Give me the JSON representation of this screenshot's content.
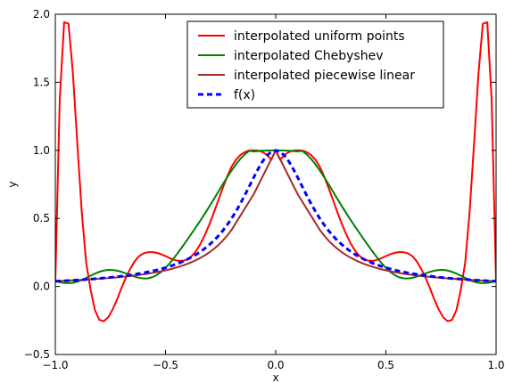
{
  "chart_data": {
    "type": "line",
    "title": "",
    "xlabel": "x",
    "ylabel": "y",
    "xlim": [
      -1.0,
      1.0
    ],
    "ylim": [
      -0.5,
      2.0
    ],
    "xticks": [
      -1.0,
      -0.5,
      0.0,
      0.5,
      1.0
    ],
    "xtick_labels": [
      "−1.0",
      "−0.5",
      "0.0",
      "0.5",
      "1.0"
    ],
    "yticks": [
      -0.5,
      0.0,
      0.5,
      1.0,
      1.5,
      2.0
    ],
    "ytick_labels": [
      "−0.5",
      "0.0",
      "0.5",
      "1.0",
      "1.5",
      "2.0"
    ],
    "grid": false,
    "legend_position": "top-right",
    "x": [
      -1.0,
      -0.98,
      -0.96,
      -0.94,
      -0.92,
      -0.9,
      -0.88,
      -0.86,
      -0.84,
      -0.82,
      -0.8,
      -0.78,
      -0.76,
      -0.74,
      -0.72,
      -0.7,
      -0.68,
      -0.66,
      -0.64,
      -0.62,
      -0.6,
      -0.58,
      -0.56,
      -0.54,
      -0.52,
      -0.5,
      -0.48,
      -0.46,
      -0.44,
      -0.42,
      -0.4,
      -0.38,
      -0.36,
      -0.34,
      -0.32,
      -0.3,
      -0.28,
      -0.26,
      -0.24,
      -0.22,
      -0.2,
      -0.18,
      -0.16,
      -0.14,
      -0.12,
      -0.1,
      -0.08,
      -0.06,
      -0.04,
      -0.02,
      0.0,
      0.02,
      0.04,
      0.06,
      0.08,
      0.1,
      0.12,
      0.14,
      0.16,
      0.18,
      0.2,
      0.22,
      0.24,
      0.26,
      0.28,
      0.3,
      0.32,
      0.34,
      0.36,
      0.38,
      0.4,
      0.42,
      0.44,
      0.46,
      0.48,
      0.5,
      0.52,
      0.54,
      0.56,
      0.58,
      0.6,
      0.62,
      0.64,
      0.66,
      0.68,
      0.7,
      0.72,
      0.74,
      0.76,
      0.78,
      0.8,
      0.82,
      0.84,
      0.86,
      0.88,
      0.9,
      0.92,
      0.94,
      0.96,
      0.98,
      1.0
    ],
    "series": [
      {
        "name": "interpolated uniform points",
        "color": "#ff0000",
        "style": "solid",
        "values": [
          0.0385,
          1.3694,
          1.9413,
          1.9299,
          1.5617,
          1.0465,
          0.5492,
          0.1762,
          -0.0233,
          -0.1745,
          -0.2458,
          -0.2553,
          -0.2264,
          -0.1699,
          -0.0971,
          -0.0122,
          0.0636,
          0.1295,
          0.1843,
          0.2229,
          0.2434,
          0.2515,
          0.2529,
          0.2469,
          0.2368,
          0.2231,
          0.2078,
          0.195,
          0.1876,
          0.1884,
          0.1999,
          0.2246,
          0.2635,
          0.3168,
          0.3829,
          0.4598,
          0.5455,
          0.6351,
          0.7241,
          0.8075,
          0.881,
          0.9312,
          0.9665,
          0.9879,
          0.9986,
          1.0,
          0.9986,
          0.9879,
          0.9665,
          0.9312,
          1.0,
          0.9312,
          0.9665,
          0.9879,
          0.9986,
          1.0,
          0.9986,
          0.9879,
          0.9665,
          0.9312,
          0.881,
          0.8075,
          0.7241,
          0.6351,
          0.5455,
          0.4598,
          0.3829,
          0.3168,
          0.2635,
          0.2246,
          0.1999,
          0.1884,
          0.1876,
          0.195,
          0.2078,
          0.2231,
          0.2368,
          0.2469,
          0.2529,
          0.2515,
          0.2434,
          0.2229,
          0.1843,
          0.1295,
          0.0636,
          -0.0122,
          -0.0971,
          -0.1699,
          -0.2264,
          -0.2553,
          -0.2458,
          -0.1745,
          -0.0233,
          0.1762,
          0.5492,
          1.0465,
          1.5617,
          1.9299,
          1.9413,
          1.3694,
          0.0385
        ]
      },
      {
        "name": "interpolated Chebyshev",
        "color": "#008000",
        "style": "solid",
        "values": [
          0.0385,
          0.0318,
          0.0262,
          0.024,
          0.0268,
          0.0348,
          0.0471,
          0.0624,
          0.0789,
          0.0946,
          0.1077,
          0.1169,
          0.1214,
          0.121,
          0.1161,
          0.1074,
          0.0961,
          0.0838,
          0.0722,
          0.0632,
          0.0585,
          0.0596,
          0.0677,
          0.0833,
          0.1064,
          0.1364,
          0.1721,
          0.2122,
          0.2553,
          0.3002,
          0.3461,
          0.3927,
          0.4401,
          0.4886,
          0.5386,
          0.5901,
          0.643,
          0.6967,
          0.7503,
          0.8026,
          0.8523,
          0.8979,
          0.938,
          0.9712,
          0.9962,
          0.9919,
          0.9948,
          0.9972,
          0.9988,
          0.9997,
          1.0,
          0.9997,
          0.9988,
          0.9972,
          0.9948,
          0.9919,
          0.9962,
          0.9712,
          0.938,
          0.8979,
          0.8523,
          0.8026,
          0.7503,
          0.6967,
          0.643,
          0.5901,
          0.5386,
          0.4886,
          0.4401,
          0.3927,
          0.3461,
          0.3002,
          0.2553,
          0.2122,
          0.1721,
          0.1364,
          0.1064,
          0.0833,
          0.0677,
          0.0596,
          0.0585,
          0.0632,
          0.0722,
          0.0838,
          0.0961,
          0.1074,
          0.1161,
          0.121,
          0.1214,
          0.1169,
          0.1077,
          0.0946,
          0.0789,
          0.0624,
          0.0471,
          0.0348,
          0.0268,
          0.024,
          0.0262,
          0.0318,
          0.0385
        ]
      },
      {
        "name": "interpolated piecewise linear",
        "color": "#a52a2a",
        "style": "solid",
        "values": [
          0.0385,
          0.0401,
          0.0417,
          0.0434,
          0.0451,
          0.0468,
          0.0487,
          0.0506,
          0.0526,
          0.0547,
          0.0569,
          0.0592,
          0.0616,
          0.0642,
          0.067,
          0.07,
          0.0733,
          0.0768,
          0.0806,
          0.0847,
          0.0892,
          0.0941,
          0.0993,
          0.105,
          0.1114,
          0.1183,
          0.126,
          0.1345,
          0.144,
          0.1546,
          0.1663,
          0.1796,
          0.1944,
          0.2113,
          0.2302,
          0.2518,
          0.2764,
          0.3044,
          0.3367,
          0.3736,
          0.416,
          0.4682,
          0.5204,
          0.5726,
          0.6248,
          0.677,
          0.7416,
          0.8062,
          0.8708,
          0.9354,
          1.0,
          0.9354,
          0.8708,
          0.8062,
          0.7416,
          0.677,
          0.6248,
          0.5726,
          0.5204,
          0.4682,
          0.416,
          0.3736,
          0.3367,
          0.3044,
          0.2764,
          0.2518,
          0.2302,
          0.2113,
          0.1944,
          0.1796,
          0.1663,
          0.1546,
          0.144,
          0.1345,
          0.126,
          0.1183,
          0.1114,
          0.105,
          0.0993,
          0.0941,
          0.0892,
          0.0847,
          0.0806,
          0.0768,
          0.0733,
          0.07,
          0.067,
          0.0642,
          0.0616,
          0.0592,
          0.0569,
          0.0547,
          0.0526,
          0.0506,
          0.0487,
          0.0468,
          0.0451,
          0.0434,
          0.0417,
          0.0401,
          0.0385
        ]
      },
      {
        "name": "f(x)",
        "color": "#0000ff",
        "style": "dashed",
        "values": [
          0.0385,
          0.04,
          0.0416,
          0.0433,
          0.0451,
          0.047,
          0.0491,
          0.0513,
          0.0536,
          0.0561,
          0.0588,
          0.0617,
          0.0648,
          0.0681,
          0.0717,
          0.0755,
          0.0796,
          0.0841,
          0.089,
          0.0942,
          0.1,
          0.1063,
          0.1131,
          0.1206,
          0.1289,
          0.1379,
          0.1479,
          0.159,
          0.1712,
          0.1848,
          0.2,
          0.2169,
          0.2358,
          0.2571,
          0.2809,
          0.3077,
          0.3378,
          0.3717,
          0.4098,
          0.4525,
          0.5,
          0.5525,
          0.6098,
          0.6711,
          0.7353,
          0.8,
          0.8621,
          0.9174,
          0.9615,
          0.9901,
          1.0,
          0.9901,
          0.9615,
          0.9174,
          0.8621,
          0.8,
          0.7353,
          0.6711,
          0.6098,
          0.5525,
          0.5,
          0.4525,
          0.4098,
          0.3717,
          0.3378,
          0.3077,
          0.2809,
          0.2571,
          0.2358,
          0.2169,
          0.2,
          0.1848,
          0.1712,
          0.159,
          0.1479,
          0.1379,
          0.1289,
          0.1206,
          0.1131,
          0.1063,
          0.1,
          0.0942,
          0.089,
          0.0841,
          0.0796,
          0.0755,
          0.0717,
          0.0681,
          0.0648,
          0.0617,
          0.0588,
          0.0561,
          0.0536,
          0.0513,
          0.0491,
          0.047,
          0.0451,
          0.0433,
          0.0416,
          0.04,
          0.0385
        ]
      }
    ]
  }
}
